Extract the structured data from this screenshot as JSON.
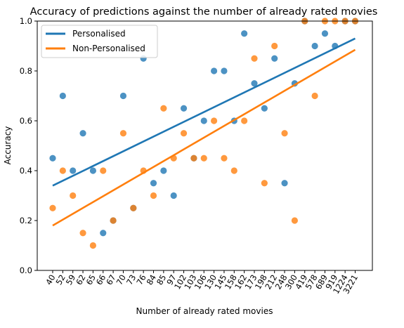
{
  "chart_data": {
    "type": "scatter",
    "title": "Accuracy of predictions against the number of already rated movies",
    "xlabel": "Number of already rated movies",
    "ylabel": "Accuracy",
    "categories": [
      "40",
      "52",
      "59",
      "62",
      "65",
      "66",
      "67",
      "70",
      "73",
      "76",
      "84",
      "85",
      "97",
      "102",
      "103",
      "106",
      "130",
      "145",
      "158",
      "162",
      "173",
      "198",
      "212",
      "248",
      "300",
      "419",
      "578",
      "689",
      "919",
      "1224",
      "3221"
    ],
    "ylim": [
      0.0,
      1.0
    ],
    "yticks": [
      "0.0",
      "0.2",
      "0.4",
      "0.6",
      "0.8",
      "1.0"
    ],
    "grid": false,
    "legend": "top-left",
    "series": [
      {
        "name": "Personalised",
        "color": "#1f77b4",
        "values": [
          0.45,
          0.7,
          0.4,
          0.55,
          0.4,
          0.15,
          0.2,
          0.7,
          0.25,
          0.85,
          0.35,
          0.4,
          0.3,
          0.65,
          0.45,
          0.6,
          0.8,
          0.8,
          0.6,
          0.95,
          0.75,
          0.65,
          0.85,
          0.35,
          0.75,
          1.0,
          0.9,
          0.95,
          0.9,
          1.0,
          1.0
        ],
        "trend": [
          0.34,
          0.93
        ]
      },
      {
        "name": "Non-Personalised",
        "color": "#ff7f0e",
        "values": [
          0.25,
          0.4,
          0.3,
          0.15,
          0.1,
          0.4,
          0.2,
          0.55,
          0.25,
          0.4,
          0.3,
          0.65,
          0.45,
          0.55,
          0.45,
          0.45,
          0.6,
          0.45,
          0.4,
          0.6,
          0.85,
          0.35,
          0.9,
          0.55,
          0.2,
          1.0,
          0.7,
          1.0,
          1.0,
          1.0,
          1.0
        ],
        "trend": [
          0.18,
          0.885
        ]
      }
    ]
  }
}
